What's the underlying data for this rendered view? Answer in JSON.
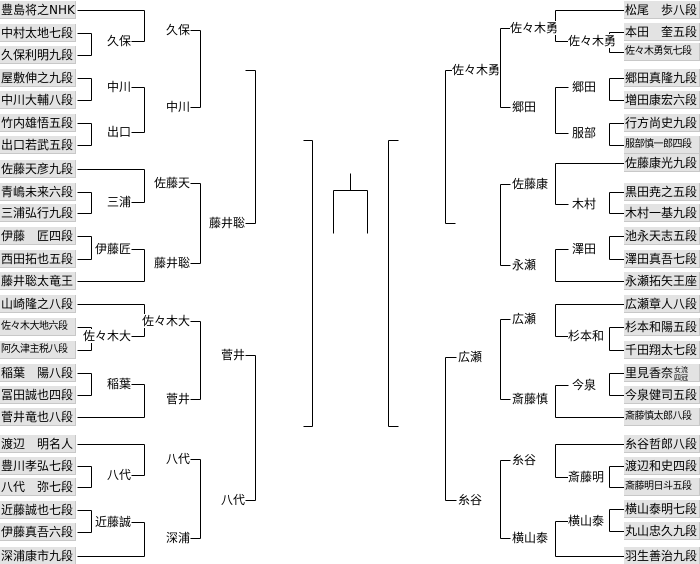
{
  "left": {
    "players": [
      "豊島将之NHK杯",
      "中村太地七段",
      "久保利明九段",
      "屋敷伸之九段",
      "中川大輔八段",
      "竹内雄悟五段",
      "出口若武五段",
      "佐藤天彦九段",
      "青嶋未来六段",
      "三浦弘行九段",
      "伊藤　匠四段",
      "西田拓也五段",
      "藤井聡太竜王",
      "山崎隆之八段",
      "佐々木大地六段",
      "阿久津主税八段",
      "稲葉　陽八段",
      "冨田誠也四段",
      "菅井竜也八段",
      "渡辺　明名人",
      "豊川孝弘七段",
      "八代　弥七段",
      "近藤誠也七段",
      "伊藤真吾六段",
      "深浦康市九段"
    ],
    "labels": [
      "久保",
      "中川",
      "出口",
      "三浦",
      "伊藤匠",
      "佐々木大",
      "稲葉",
      "八代",
      "近藤誠",
      "久保",
      "中川",
      "佐藤天",
      "藤井聡",
      "佐々木大",
      "菅井",
      "八代",
      "深浦",
      "藤井聡",
      "菅井",
      "八代"
    ]
  },
  "right": {
    "players": [
      "松尾　歩八段",
      "本田　奎五段",
      "佐々木勇気七段",
      "郷田真隆九段",
      "増田康宏六段",
      "行方尚史九段",
      "服部慎一郎四段",
      "佐藤康光九段",
      "黒田尭之五段",
      "木村一基九段",
      "池永天志五段",
      "澤田真吾七段",
      "永瀬拓矢王座",
      "広瀬章人八段",
      "杉本和陽五段",
      "千田翔太七段",
      "里見香奈",
      "今泉健司五段",
      "斎藤慎太郎八段",
      "糸谷哲郎八段",
      "渡辺和史四段",
      "斎藤明日斗五段",
      "横山泰明七段",
      "丸山忠久九段",
      "羽生善治九段"
    ],
    "player_titles": {
      "16": "女流四冠"
    },
    "labels": [
      "佐々木勇",
      "郷田",
      "服部",
      "木村",
      "澤田",
      "杉本和",
      "今泉",
      "斎藤明",
      "横山泰",
      "佐々木勇",
      "郷田",
      "佐藤康",
      "永瀬",
      "広瀬",
      "斎藤慎",
      "糸谷",
      "横山泰",
      "佐々木勇",
      "広瀬",
      "糸谷"
    ]
  },
  "colors": {
    "box_bg": "#e3e3e3",
    "line": "#000000"
  }
}
